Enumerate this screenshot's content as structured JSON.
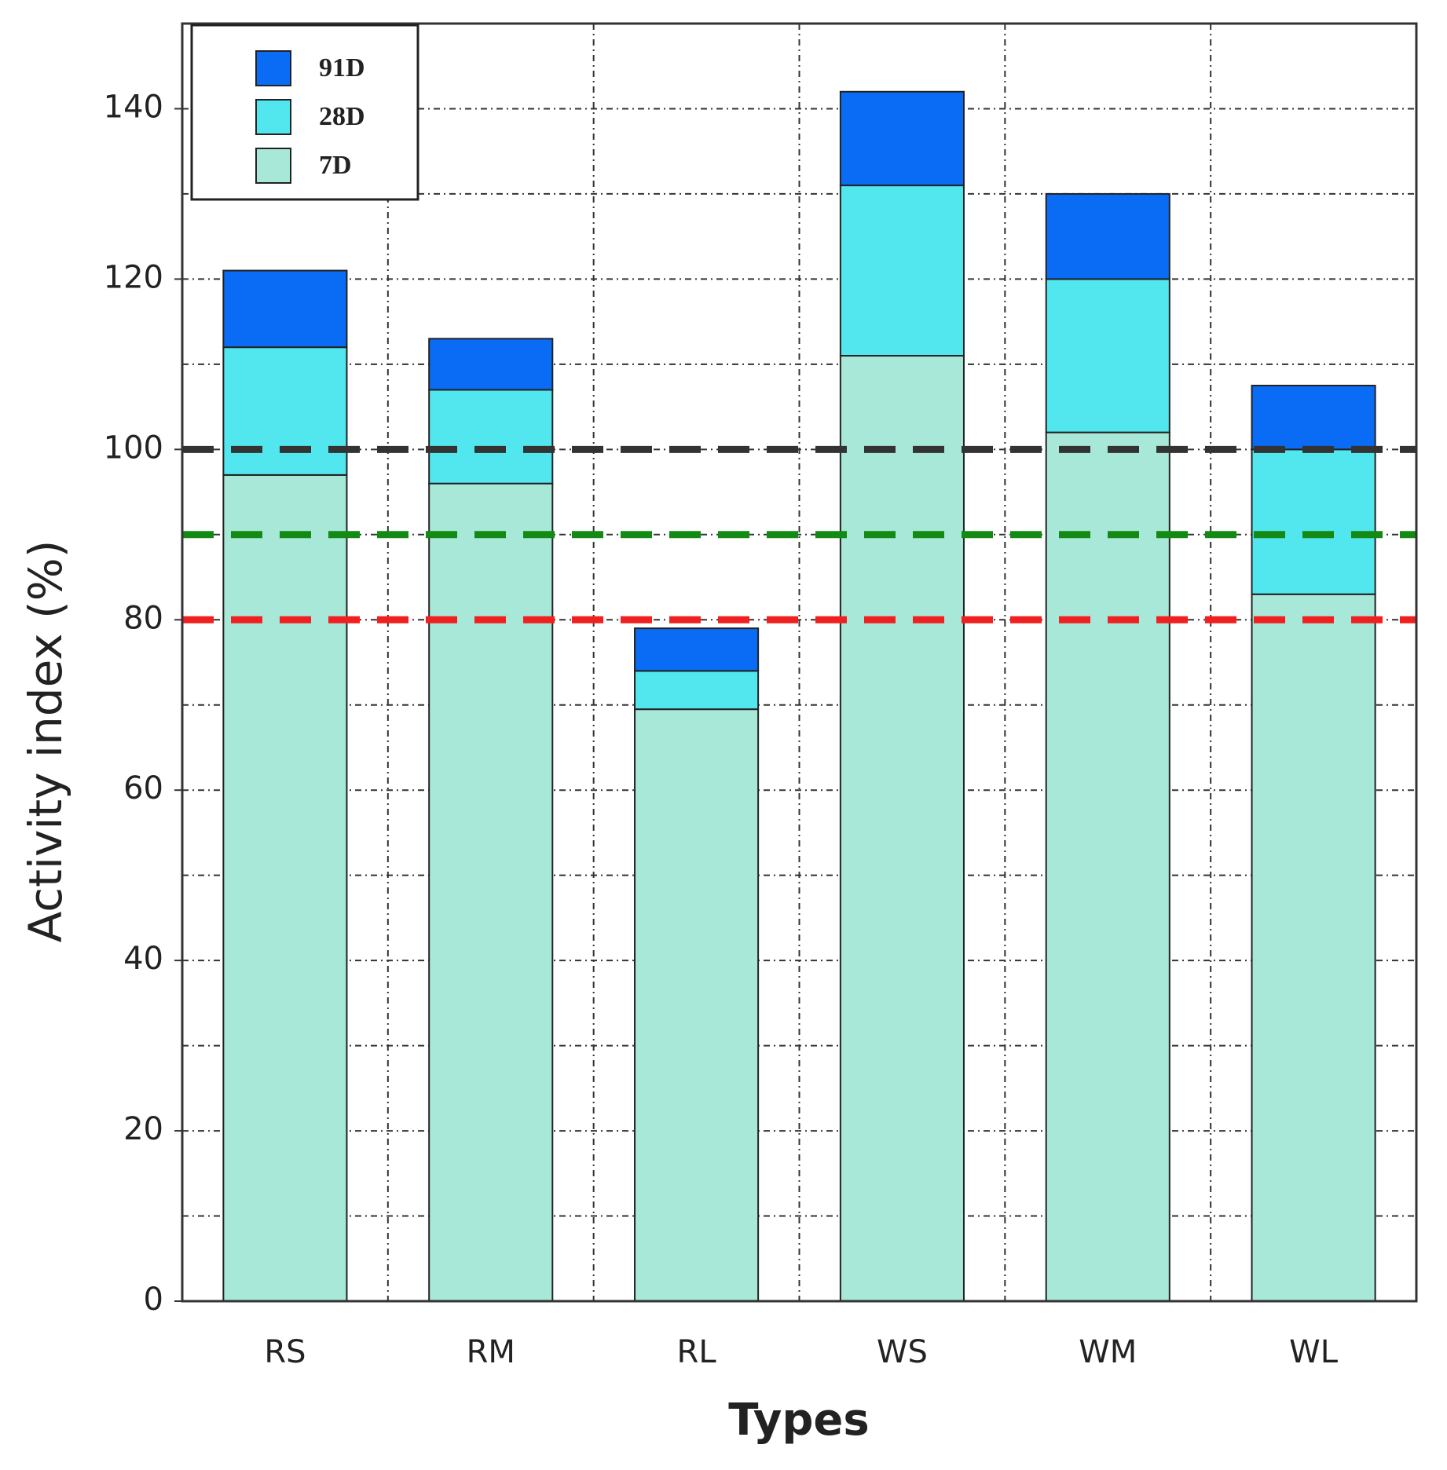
{
  "chart_data": {
    "type": "stacked_bar",
    "xlabel": "Types",
    "ylabel": "Activity index (%)",
    "categories": [
      "RS",
      "RM",
      "RL",
      "WS",
      "WM",
      "WL"
    ],
    "series": [
      {
        "name": "7D",
        "color": "#a8e8d8",
        "values": [
          97,
          96,
          69.5,
          111,
          102,
          83
        ]
      },
      {
        "name": "28D",
        "color": "#52e6ee",
        "values": [
          15,
          11,
          4.5,
          20,
          18,
          17
        ]
      },
      {
        "name": "91D",
        "color": "#0a6cf5",
        "values": [
          9,
          6,
          5,
          11,
          10,
          7.5
        ]
      }
    ],
    "ylim": [
      0,
      150
    ],
    "yticks": [
      0,
      20,
      40,
      60,
      80,
      100,
      120,
      140
    ],
    "minor_yticks": [
      10,
      30,
      50,
      70,
      90,
      110,
      130
    ],
    "grid": true,
    "legend": "upper left",
    "reference_lines": [
      {
        "value": 100,
        "color": "#333333"
      },
      {
        "value": 90,
        "color": "#138a13"
      },
      {
        "value": 80,
        "color": "#f02020"
      }
    ]
  }
}
